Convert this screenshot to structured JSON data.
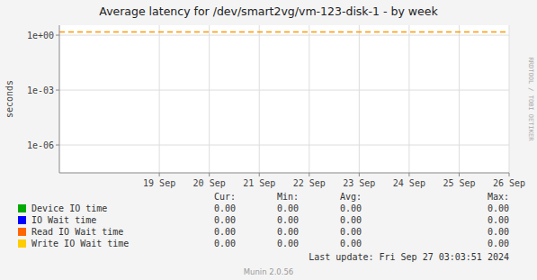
{
  "chart_data": {
    "type": "line",
    "title": "Average latency for /dev/smart2vg/vm-123-disk-1  - by week",
    "ylabel": "seconds",
    "log": "y",
    "grid": true,
    "xlim": [
      1726531200,
      1727308800
    ],
    "xticks": [
      {
        "value": 1726704000,
        "label": "19 Sep"
      },
      {
        "value": 1726790400,
        "label": "20 Sep"
      },
      {
        "value": 1726876800,
        "label": "21 Sep"
      },
      {
        "value": 1726963200,
        "label": "22 Sep"
      },
      {
        "value": 1727049600,
        "label": "23 Sep"
      },
      {
        "value": 1727136000,
        "label": "24 Sep"
      },
      {
        "value": 1727222400,
        "label": "25 Sep"
      },
      {
        "value": 1727308800,
        "label": "26 Sep"
      }
    ],
    "ylim": [
      3e-08,
      3.5
    ],
    "yticks": [
      {
        "value": 1e-06,
        "label": "1e-06"
      },
      {
        "value": 0.001,
        "label": "1e-03"
      },
      {
        "value": 1,
        "label": "1e+00"
      }
    ],
    "hline": {
      "value": 1.5,
      "color": "#ff9900",
      "line_style": "dashed"
    },
    "legend_columns": [
      "Cur:",
      "Min:",
      "Avg:",
      "Max:"
    ],
    "series": [
      {
        "name": "Device IO time",
        "color": "#00aa00",
        "stats": [
          "0.00",
          "0.00",
          "0.00",
          "0.00"
        ]
      },
      {
        "name": "IO Wait time",
        "color": "#0000ff",
        "stats": [
          "0.00",
          "0.00",
          "0.00",
          "0.00"
        ]
      },
      {
        "name": "Read IO Wait time",
        "color": "#ff6600",
        "stats": [
          "0.00",
          "0.00",
          "0.00",
          "0.00"
        ]
      },
      {
        "name": "Write IO Wait time",
        "color": "#ffcc00",
        "stats": [
          "0.00",
          "0.00",
          "0.00",
          "0.00"
        ]
      }
    ],
    "annotations": [
      "Last update: Fri Sep 27 03:03:51 2024",
      "Munin 2.0.56",
      "RRDTOOL / TOBI OETIKER"
    ]
  }
}
